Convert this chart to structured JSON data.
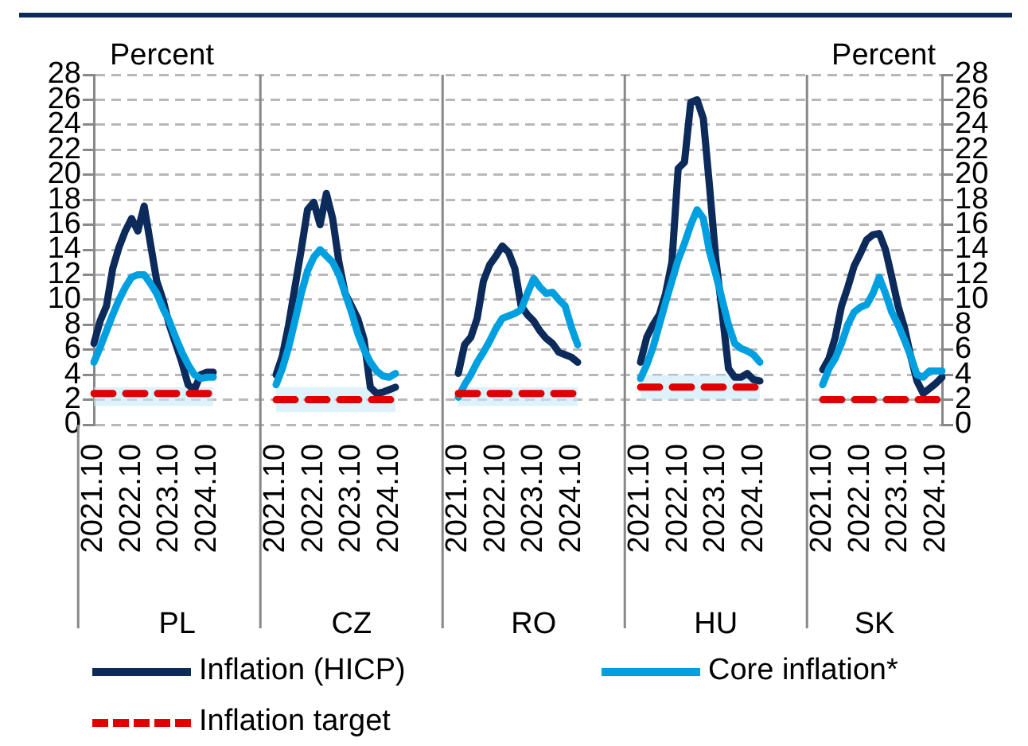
{
  "chart_data": {
    "type": "line",
    "categories": [
      "2021.10",
      null,
      null,
      null,
      null,
      null,
      "2022.10",
      null,
      null,
      null,
      null,
      null,
      "2023.10",
      null,
      null,
      null,
      null,
      null,
      "2024.10",
      null,
      null,
      null,
      null,
      null,
      null,
      null,
      null,
      null,
      null,
      "2021.10",
      null,
      null,
      null,
      null,
      null,
      "2022.10",
      null,
      null,
      null,
      null,
      null,
      "2023.10",
      null,
      null,
      null,
      null,
      null,
      "2024.10",
      null,
      null,
      null,
      null,
      null,
      null,
      null,
      null,
      null,
      null,
      "2021.10",
      null,
      null,
      null,
      null,
      null,
      "2022.10",
      null,
      null,
      null,
      null,
      null,
      "2023.10",
      null,
      null,
      null,
      null,
      null,
      "2024.10",
      null,
      null,
      null,
      null,
      null,
      null,
      null,
      null,
      null,
      null,
      "2021.10",
      null,
      null,
      null,
      null,
      null,
      "2022.10",
      null,
      null,
      null,
      null,
      null,
      "2023.10",
      null,
      null,
      null,
      null,
      null,
      "2024.10",
      null,
      null,
      null,
      null,
      null,
      null,
      null,
      null,
      null,
      null,
      "2021.10",
      null,
      null,
      null,
      null,
      null,
      "2022.10",
      null,
      null,
      null,
      null,
      null,
      "2023.10",
      null,
      null,
      null,
      null,
      null,
      "2024.10",
      null
    ],
    "series": [
      {
        "name": "Inflation (HICP)",
        "color": "#0c2a5a",
        "values": [
          6.5,
          8.3,
          9.5,
          12.5,
          14.2,
          15.5,
          16.5,
          15.5,
          17.5,
          14.5,
          11.5,
          10,
          8,
          6.5,
          5,
          3.2,
          2.8,
          4,
          4.2,
          4.2,
          null,
          null,
          null,
          null,
          null,
          null,
          null,
          null,
          null,
          4,
          5.5,
          8,
          11,
          14,
          17.2,
          17.8,
          16,
          18.5,
          16.5,
          13,
          10.5,
          9.5,
          8.5,
          6.8,
          3,
          2.5,
          2.6,
          2.8,
          3,
          null,
          null,
          null,
          null,
          null,
          null,
          null,
          null,
          null,
          4.1,
          6.4,
          7,
          8.5,
          11.5,
          12.8,
          13.5,
          14.3,
          13.8,
          12.5,
          9.5,
          8.8,
          8.3,
          7.5,
          6.9,
          6.5,
          5.8,
          5.6,
          5.4,
          5,
          null,
          null,
          null,
          null,
          null,
          null,
          null,
          null,
          null,
          5,
          7,
          8,
          8.8,
          10.5,
          13,
          20.5,
          21,
          25.8,
          26,
          24.5,
          19,
          13.2,
          9,
          4.5,
          3.8,
          3.8,
          4.1,
          3.6,
          3.5,
          null,
          null,
          null,
          null,
          null,
          null,
          null,
          null,
          null,
          4.4,
          5.3,
          7,
          9.5,
          11,
          12.7,
          13.7,
          14.8,
          15.2,
          15.3,
          14,
          11.8,
          9.5,
          7.8,
          5.5,
          3.5,
          2.5,
          2.9,
          3.3,
          3.8
        ]
      },
      {
        "name": "Core inflation*",
        "color": "#00a0e0",
        "values": [
          5,
          6.2,
          7.5,
          8.8,
          10,
          11,
          11.8,
          12,
          12,
          11.3,
          10.5,
          9.3,
          8.3,
          7,
          5.8,
          4.8,
          4,
          3.7,
          3.8,
          3.8,
          null,
          null,
          null,
          null,
          null,
          null,
          null,
          null,
          null,
          3.2,
          4.5,
          6.2,
          8.3,
          10.5,
          12.3,
          13.4,
          14,
          13.5,
          13,
          12,
          10.5,
          9,
          7.3,
          6,
          5,
          4.3,
          3.9,
          3.8,
          4.1,
          null,
          null,
          null,
          null,
          null,
          null,
          null,
          null,
          null,
          2.2,
          3.2,
          4,
          5,
          5.8,
          6.7,
          7.7,
          8.5,
          8.7,
          8.9,
          9.2,
          10.5,
          11.7,
          11,
          10.5,
          10.6,
          10,
          9.5,
          7.8,
          6.4,
          null,
          null,
          null,
          null,
          null,
          null,
          null,
          null,
          null,
          3.7,
          4.8,
          6.2,
          8,
          9.8,
          11.5,
          13.2,
          14.5,
          16,
          17.2,
          16.5,
          13.8,
          12,
          10,
          8,
          6.5,
          6.1,
          5.9,
          5.6,
          5,
          null,
          null,
          null,
          null,
          null,
          null,
          null,
          null,
          null,
          3.2,
          4.5,
          5.3,
          6.5,
          8,
          9,
          9.4,
          9.6,
          10.5,
          11.8,
          10.5,
          9,
          8,
          6.8,
          5.5,
          4,
          3.8,
          4.3,
          4.3,
          4.3
        ]
      },
      {
        "name": "Inflation target",
        "color": "#e00000",
        "line_style": "dashed",
        "values": [
          2.5,
          2.5,
          2.5,
          2.5,
          2.5,
          2.5,
          2.5,
          2.5,
          2.5,
          2.5,
          2.5,
          2.5,
          2.5,
          2.5,
          2.5,
          2.5,
          2.5,
          2.5,
          2.5,
          2.5,
          null,
          null,
          null,
          null,
          null,
          null,
          null,
          null,
          null,
          2,
          2,
          2,
          2,
          2,
          2,
          2,
          2,
          2,
          2,
          2,
          2,
          2,
          2,
          2,
          2,
          2,
          2,
          2,
          2,
          null,
          null,
          null,
          null,
          null,
          null,
          null,
          null,
          null,
          2.5,
          2.5,
          2.5,
          2.5,
          2.5,
          2.5,
          2.5,
          2.5,
          2.5,
          2.5,
          2.5,
          2.5,
          2.5,
          2.5,
          2.5,
          2.5,
          2.5,
          2.5,
          2.5,
          2.5,
          null,
          null,
          null,
          null,
          null,
          null,
          null,
          null,
          null,
          3,
          3,
          3,
          3,
          3,
          3,
          3,
          3,
          3,
          3,
          3,
          3,
          3,
          3,
          3,
          3,
          3,
          3,
          3,
          3,
          null,
          null,
          null,
          null,
          null,
          null,
          null,
          null,
          null,
          2,
          2,
          2,
          2,
          2,
          2,
          2,
          2,
          2,
          2,
          2,
          2,
          2,
          2,
          2,
          2,
          2,
          2,
          2,
          2
        ],
        "lower": [
          1.5,
          1.5,
          1.5,
          1.5,
          1.5,
          1.5,
          1.5,
          1.5,
          1.5,
          1.5,
          1.5,
          1.5,
          1.5,
          1.5,
          1.5,
          1.5,
          1.5,
          1.5,
          1.5,
          1.5,
          null,
          null,
          null,
          null,
          null,
          null,
          null,
          null,
          null,
          1,
          1,
          1,
          1,
          1,
          1,
          1,
          1,
          1,
          1,
          1,
          1,
          1,
          1,
          1,
          1,
          1,
          1,
          1,
          1,
          null,
          null,
          null,
          null,
          null,
          null,
          null,
          null,
          null,
          1.5,
          1.5,
          1.5,
          1.5,
          1.5,
          1.5,
          1.5,
          1.5,
          1.5,
          1.5,
          1.5,
          1.5,
          1.5,
          1.5,
          1.5,
          1.5,
          1.5,
          1.5,
          1.5,
          1.5,
          null,
          null,
          null,
          null,
          null,
          null,
          null,
          null,
          null,
          2,
          2,
          2,
          2,
          2,
          2,
          2,
          2,
          2,
          2,
          2,
          2,
          2,
          2,
          2,
          2,
          2,
          2,
          2,
          2,
          null,
          null,
          null,
          null,
          null,
          null,
          null,
          null,
          null,
          null,
          null,
          null,
          null,
          null,
          null,
          null,
          null,
          null,
          null,
          null,
          null,
          null,
          null,
          null,
          null,
          null,
          null,
          null,
          null
        ],
        "upper": [
          3,
          3,
          3,
          3,
          3,
          3,
          3,
          3,
          3,
          3,
          3,
          3,
          3,
          3,
          3,
          3,
          3,
          3,
          3,
          3,
          null,
          null,
          null,
          null,
          null,
          null,
          null,
          null,
          null,
          3,
          3,
          3,
          3,
          3,
          3,
          3,
          3,
          3,
          3,
          3,
          3,
          3,
          3,
          3,
          3,
          3,
          3,
          3,
          3,
          null,
          null,
          null,
          null,
          null,
          null,
          null,
          null,
          null,
          3,
          3,
          3,
          3,
          3,
          3,
          3,
          3,
          3,
          3,
          3,
          3,
          3,
          3,
          3,
          3,
          3,
          3,
          3,
          3,
          null,
          null,
          null,
          null,
          null,
          null,
          null,
          null,
          null,
          4,
          4,
          4,
          4,
          4,
          4,
          4,
          4,
          4,
          4,
          4,
          4,
          4,
          4,
          4,
          4,
          4,
          4,
          4,
          4,
          null,
          null,
          null,
          null,
          null,
          null,
          null,
          null,
          null,
          null,
          null,
          null,
          null,
          null,
          null,
          null,
          null,
          null,
          null,
          null,
          null,
          null,
          null,
          null,
          null,
          null,
          null,
          null,
          null
        ]
      }
    ],
    "ylabel": "Percent",
    "y2label": "Percent",
    "ylim": [
      0,
      28
    ],
    "yticks": [
      0,
      2,
      4,
      6,
      8,
      10,
      12,
      14,
      16,
      18,
      20,
      22,
      24,
      26,
      28
    ],
    "y2lim": [
      0,
      28
    ],
    "y2ticks": [
      0,
      2,
      4,
      6,
      8,
      10,
      12,
      14,
      16,
      18,
      20,
      22,
      24,
      26,
      28
    ],
    "annotations": [
      "PL",
      "CZ",
      "RO",
      "HU",
      "SK"
    ],
    "grid": "y",
    "legend": "bottom",
    "marker": "none"
  }
}
